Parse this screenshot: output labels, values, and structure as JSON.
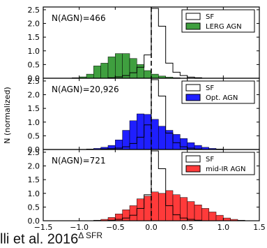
{
  "chart_data": {
    "type": "histogram",
    "xlabel": "Δ SFR",
    "ylabel": "N (normalized)",
    "xlim": [
      -1.5,
      1.5
    ],
    "xticks": [
      "−1.5",
      "−1.0",
      "−0.5",
      "0.0",
      "0.5",
      "1.0",
      "1.5"
    ],
    "bins": [
      -1.5,
      -1.4,
      -1.3,
      -1.2,
      -1.1,
      -1.0,
      -0.9,
      -0.8,
      -0.7,
      -0.6,
      -0.5,
      -0.4,
      -0.3,
      -0.2,
      -0.1,
      0.0,
      0.1,
      0.2,
      0.3,
      0.4,
      0.5,
      0.6,
      0.7,
      0.8,
      0.9,
      1.0,
      1.1,
      1.2,
      1.3,
      1.4,
      1.5
    ],
    "vline_x": 0.0,
    "panels": [
      {
        "annotation": "N(AGN)=466",
        "ylim": [
          0,
          2.6
        ],
        "yticks": [
          "0.0",
          "0.5",
          "1.0",
          "1.5",
          "2.0",
          "2.5"
        ],
        "legend": [
          "SF",
          "LERG AGN"
        ],
        "agn_color": "#3f9f3f",
        "series": [
          {
            "name": "SF",
            "style": "step",
            "values": [
              0,
              0,
              0,
              0,
              0,
              0,
              0,
              0,
              0,
              0.02,
              0.05,
              0.1,
              0.2,
              0.4,
              0.85,
              2.55,
              1.9,
              0.55,
              0.22,
              0.1,
              0.04,
              0.02,
              0,
              0,
              0,
              0,
              0,
              0,
              0,
              0
            ]
          },
          {
            "name": "LERG AGN",
            "style": "filled",
            "values": [
              0,
              0,
              0,
              0,
              0.02,
              0.05,
              0.15,
              0.45,
              0.55,
              0.78,
              0.9,
              0.9,
              0.72,
              0.5,
              0.28,
              0.15,
              0.08,
              0.04,
              0.02,
              0,
              0,
              0,
              0,
              0,
              0,
              0,
              0,
              0,
              0,
              0
            ]
          }
        ]
      },
      {
        "annotation": "N(AGN)=20,926",
        "ylim": [
          0,
          2.6
        ],
        "yticks": [
          "0.0",
          "0.5",
          "1.0",
          "1.5",
          "2.0",
          "2.5"
        ],
        "legend": [
          "SF",
          "Opt. AGN"
        ],
        "agn_color": "#1f1fff",
        "series": [
          {
            "name": "SF",
            "style": "step",
            "values": [
              0,
              0,
              0,
              0,
              0,
              0,
              0,
              0,
              0.02,
              0.03,
              0.05,
              0.1,
              0.22,
              0.45,
              0.9,
              2.55,
              1.95,
              0.6,
              0.25,
              0.1,
              0.05,
              0.02,
              0,
              0,
              0,
              0,
              0,
              0,
              0,
              0
            ]
          },
          {
            "name": "Opt. AGN",
            "style": "filled",
            "values": [
              0,
              0,
              0,
              0,
              0,
              0,
              0.02,
              0.04,
              0.08,
              0.15,
              0.35,
              0.7,
              1.05,
              1.3,
              1.28,
              1.1,
              0.85,
              0.7,
              0.55,
              0.4,
              0.25,
              0.15,
              0.08,
              0.04,
              0.02,
              0,
              0,
              0,
              0,
              0
            ]
          }
        ]
      },
      {
        "annotation": "N(AGN)=721",
        "ylim": [
          0,
          2.6
        ],
        "yticks": [
          "0.0",
          "0.5",
          "1.0",
          "1.5",
          "2.0",
          "2.5"
        ],
        "legend": [
          "SF",
          "mid-IR AGN"
        ],
        "agn_color": "#ff3a3a",
        "series": [
          {
            "name": "SF",
            "style": "step",
            "values": [
              0,
              0,
              0,
              0,
              0,
              0,
              0,
              0,
              0,
              0.02,
              0.05,
              0.1,
              0.2,
              0.45,
              0.95,
              2.55,
              1.9,
              0.55,
              0.22,
              0.1,
              0.05,
              0.02,
              0,
              0,
              0,
              0,
              0,
              0,
              0,
              0
            ]
          },
          {
            "name": "mid-IR AGN",
            "style": "filled",
            "values": [
              0,
              0,
              0,
              0,
              0,
              0,
              0,
              0.02,
              0.05,
              0.12,
              0.25,
              0.4,
              0.55,
              0.8,
              0.9,
              1.05,
              1.0,
              1.1,
              0.95,
              0.85,
              0.7,
              0.58,
              0.45,
              0.32,
              0.2,
              0.1,
              0.05,
              0.02,
              0,
              0
            ]
          }
        ]
      }
    ]
  },
  "caption": {
    "text": "lli et al. 2016",
    "superscript": "Δ SFR"
  }
}
